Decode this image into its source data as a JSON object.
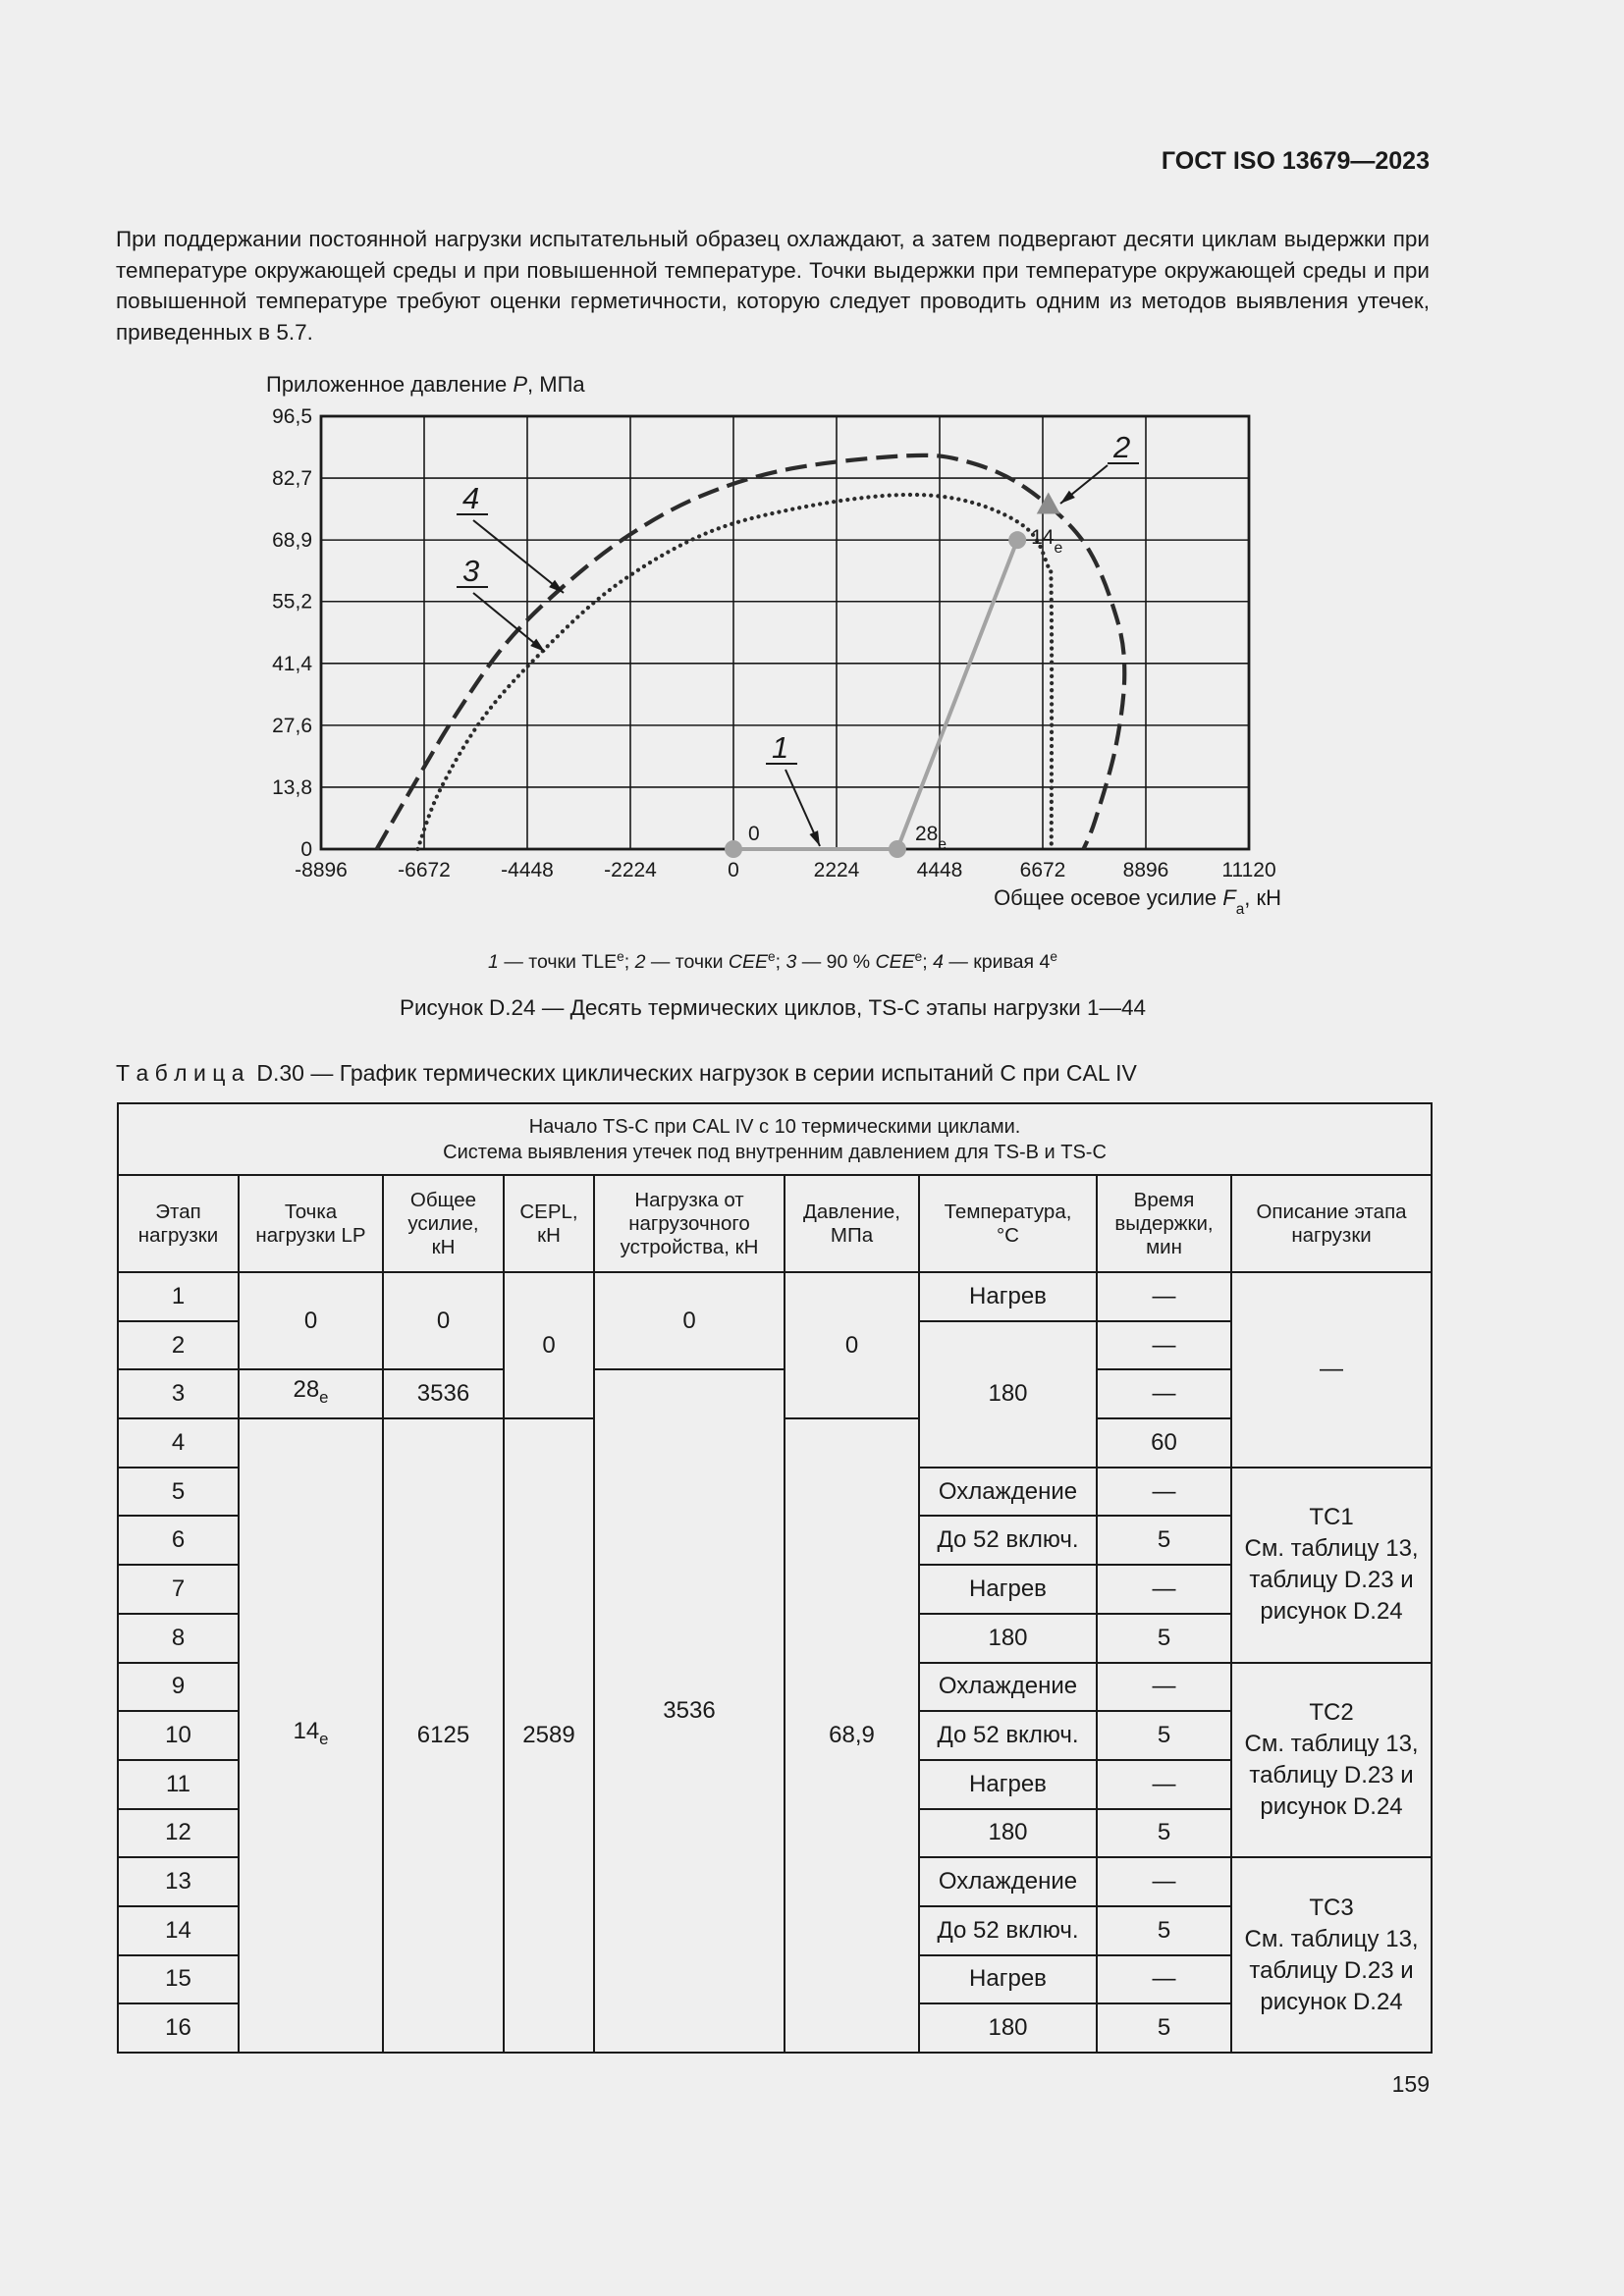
{
  "header": {
    "title": "ГОСТ ISO 13679—2023"
  },
  "paragraph": "При поддержании постоянной нагрузки испытательный образец охлаждают, а затем подвергают десяти циклам выдержки при температуре окружающей среды и при повышенной температуре. Точки выдержки при температуре окружающей среды и при повышенной температуре требуют оценки герметичности, которую следует проводить одним из методов выявления утечек, приведенных в 5.7.",
  "chart_data": {
    "type": "line",
    "y_label": [
      {
        "t": "Приложенное давление "
      },
      {
        "t": "P",
        "i": true
      },
      {
        "t": ", МПа"
      }
    ],
    "x_label": [
      {
        "t": "Общее осевое усилие "
      },
      {
        "t": "F",
        "i": true
      },
      {
        "t": "a",
        "sub": true
      },
      {
        "t": ", кН"
      }
    ],
    "xlim": [
      -8896,
      11120
    ],
    "xticks": [
      -8896,
      -6672,
      -4448,
      -2224,
      0,
      2224,
      4448,
      6672,
      8896,
      11120
    ],
    "ylim": [
      0,
      96.5
    ],
    "yticks": [
      0,
      {
        "value": 13.8,
        "label": "13,8"
      },
      {
        "value": 27.6,
        "label": "27,6"
      },
      {
        "value": 41.4,
        "label": "41,4"
      },
      {
        "value": 55.2,
        "label": "55,2"
      },
      {
        "value": 68.9,
        "label": "68,9"
      },
      {
        "value": 82.7,
        "label": "82,7"
      },
      {
        "value": 96.5,
        "label": "96,5"
      }
    ],
    "grid": true,
    "series": [
      {
        "name": "4",
        "style": "dashed",
        "color": "#2b2b2b",
        "x": [
          -7696,
          -6970,
          -6023,
          -4918,
          -3655,
          -2234,
          -656,
          1238,
          3764,
          5027,
          6290,
          7552,
          8247,
          8436,
          8247,
          7805,
          7552
        ],
        "values": [
          0,
          13.0,
          29.4,
          45.7,
          58.7,
          70.1,
          78.9,
          84.8,
          87.7,
          86.4,
          80.6,
          68.5,
          52.2,
          39.1,
          22.8,
          6.5,
          0
        ]
      },
      {
        "name": "3",
        "style": "dotted",
        "color": "#2b2b2b",
        "x": [
          -6812,
          -6339,
          -5392,
          -4129,
          -2550,
          -656,
          1238,
          3448,
          5027,
          6290,
          6763,
          6858,
          6858
        ],
        "values": [
          0,
          13.0,
          29.4,
          44.0,
          58.7,
          70.1,
          75.7,
          78.9,
          77.6,
          71.8,
          63.6,
          55.5,
          0
        ]
      },
      {
        "name": "1",
        "style": "path",
        "marker": "circle",
        "color": "#a3a3a3",
        "x": [
          0,
          3536,
          6125
        ],
        "values": [
          0,
          0,
          68.9
        ],
        "point_labels": [
          {
            "text": "0"
          },
          {
            "text": "28",
            "sub": "e"
          },
          {
            "text": "14",
            "sub": "e"
          }
        ]
      },
      {
        "name": "2",
        "style": "marker",
        "marker": "triangle",
        "color": "#8c8c8c",
        "x": [
          6794
        ],
        "values": [
          76.7
        ]
      }
    ]
  },
  "figure": {
    "key": [
      {
        "t": "1",
        "i": true
      },
      {
        "t": " — точки TLE"
      },
      {
        "t": "e",
        "sup": true
      },
      {
        "t": "; "
      },
      {
        "t": "2",
        "i": true
      },
      {
        "t": " — точки "
      },
      {
        "t": "CEE",
        "i": true
      },
      {
        "t": "e",
        "sup": true
      },
      {
        "t": "; "
      },
      {
        "t": "3",
        "i": true
      },
      {
        "t": " — 90 % "
      },
      {
        "t": "CEE",
        "i": true
      },
      {
        "t": "e",
        "sup": true
      },
      {
        "t": "; "
      },
      {
        "t": "4",
        "i": true
      },
      {
        "t": " — кривая 4"
      },
      {
        "t": "e",
        "sup": true
      }
    ],
    "title": "Рисунок D.24 — Десять термических циклов, TS-C этапы нагрузки 1—44"
  },
  "table": {
    "caption": "Т а б л и ц а  D.30 — График термических циклических нагрузок в серии испытаний C при CAL IV",
    "title": [
      "Начало TS-C при CAL IV с 10 термическими циклами.",
      "Система выявления утечек под внутренним давлением для TS-B и TS-C"
    ],
    "header": [
      "Этап\nнагрузки",
      "Точка\nнагрузки LP",
      "Общее\nусилие,\nкН",
      "CEPL,\nкН",
      "Нагрузка от\nнагрузочного\nустройства, кН",
      "Давление,\nМПа",
      "Температура,\n°С",
      "Время\nвыдержки,\nмин",
      "Описание этапа\nнагрузки"
    ],
    "rows": [
      [
        1,
        0,
        0,
        0,
        0,
        0,
        "Нагрев",
        "—",
        "—"
      ],
      [
        2,
        180,
        "—"
      ],
      [
        3,
        {
          "text": "28",
          "sub": "e"
        },
        3536,
        3536,
        "—"
      ],
      [
        4,
        {
          "text": "14",
          "sub": "e"
        },
        6125,
        2589,
        "68,9",
        60
      ],
      [
        5,
        "Охлаждение",
        "—",
        "TC1\nСм. таблицу 13,\nтаблицу D.23 и\nрисунок D.24"
      ],
      [
        6,
        "До 52 включ.",
        5
      ],
      [
        7,
        "Нагрев",
        "—"
      ],
      [
        8,
        180,
        5
      ],
      [
        9,
        "Охлаждение",
        "—",
        "TC2\nСм. таблицу 13,\nтаблицу D.23 и\nрисунок D.24"
      ],
      [
        10,
        "До 52 включ.",
        5
      ],
      [
        11,
        "Нагрев",
        "—"
      ],
      [
        12,
        180,
        5
      ],
      [
        13,
        "Охлаждение",
        "—",
        "TC3\nСм. таблицу 13,\nтаблицу D.23 и\nрисунок D.24"
      ],
      [
        14,
        "До 52 включ.",
        5
      ],
      [
        15,
        "Нагрев",
        "—"
      ],
      [
        16,
        180,
        5
      ]
    ]
  },
  "footer": {
    "page_number": "159"
  }
}
